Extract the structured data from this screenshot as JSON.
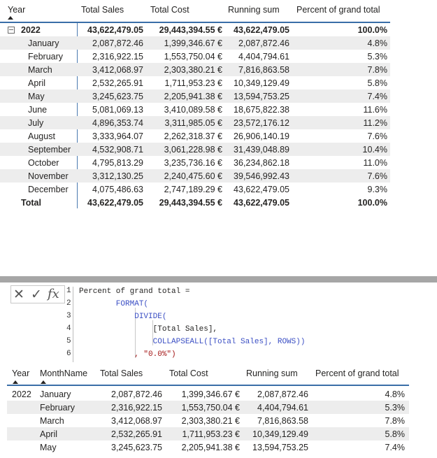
{
  "matrix": {
    "headers": {
      "year": "Year",
      "total_sales": "Total Sales",
      "total_cost": "Total Cost",
      "running_sum": "Running sum",
      "pct": "Percent of grand total"
    },
    "year_row": {
      "label": "2022",
      "total_sales": "43,622,479.05",
      "total_cost": "29,443,394.55 €",
      "running_sum": "43,622,479.05",
      "pct": "100.0%"
    },
    "rows": [
      {
        "month": "January",
        "total_sales": "2,087,872.46",
        "total_cost": "1,399,346.67 €",
        "running_sum": "2,087,872.46",
        "pct": "4.8%"
      },
      {
        "month": "February",
        "total_sales": "2,316,922.15",
        "total_cost": "1,553,750.04 €",
        "running_sum": "4,404,794.61",
        "pct": "5.3%"
      },
      {
        "month": "March",
        "total_sales": "3,412,068.97",
        "total_cost": "2,303,380.21 €",
        "running_sum": "7,816,863.58",
        "pct": "7.8%"
      },
      {
        "month": "April",
        "total_sales": "2,532,265.91",
        "total_cost": "1,711,953.23 €",
        "running_sum": "10,349,129.49",
        "pct": "5.8%"
      },
      {
        "month": "May",
        "total_sales": "3,245,623.75",
        "total_cost": "2,205,941.38 €",
        "running_sum": "13,594,753.25",
        "pct": "7.4%"
      },
      {
        "month": "June",
        "total_sales": "5,081,069.13",
        "total_cost": "3,410,089.58 €",
        "running_sum": "18,675,822.38",
        "pct": "11.6%"
      },
      {
        "month": "July",
        "total_sales": "4,896,353.74",
        "total_cost": "3,311,985.05 €",
        "running_sum": "23,572,176.12",
        "pct": "11.2%"
      },
      {
        "month": "August",
        "total_sales": "3,333,964.07",
        "total_cost": "2,262,318.37 €",
        "running_sum": "26,906,140.19",
        "pct": "7.6%"
      },
      {
        "month": "September",
        "total_sales": "4,532,908.71",
        "total_cost": "3,061,228.98 €",
        "running_sum": "31,439,048.89",
        "pct": "10.4%"
      },
      {
        "month": "October",
        "total_sales": "4,795,813.29",
        "total_cost": "3,235,736.16 €",
        "running_sum": "36,234,862.18",
        "pct": "11.0%"
      },
      {
        "month": "November",
        "total_sales": "3,312,130.25",
        "total_cost": "2,240,475.60 €",
        "running_sum": "39,546,992.43",
        "pct": "7.6%"
      },
      {
        "month": "December",
        "total_sales": "4,075,486.63",
        "total_cost": "2,747,189.29 €",
        "running_sum": "43,622,479.05",
        "pct": "9.3%"
      }
    ],
    "total_row": {
      "label": "Total",
      "total_sales": "43,622,479.05",
      "total_cost": "29,443,394.55 €",
      "running_sum": "43,622,479.05",
      "pct": "100.0%"
    }
  },
  "formula_bar": {
    "cancel_symbol": "✕",
    "commit_symbol": "✓",
    "fx_symbol": "fx",
    "line_numbers": [
      "1",
      "2",
      "3",
      "4",
      "5",
      "6"
    ],
    "lines": [
      "Percent of grand total =",
      "        FORMAT(",
      "            DIVIDE(",
      "                [Total Sales],",
      "                COLLAPSEALL([Total Sales], ROWS))",
      "            , \"0.0%\")"
    ]
  },
  "table": {
    "headers": {
      "year": "Year",
      "month": "MonthName",
      "total_sales": "Total Sales",
      "total_cost": "Total Cost",
      "running_sum": "Running sum",
      "pct": "Percent of grand total"
    },
    "rows": [
      {
        "year": "2022",
        "month": "January",
        "total_sales": "2,087,872.46",
        "total_cost": "1,399,346.67 €",
        "running_sum": "2,087,872.46",
        "pct": "4.8%"
      },
      {
        "year": "",
        "month": "February",
        "total_sales": "2,316,922.15",
        "total_cost": "1,553,750.04 €",
        "running_sum": "4,404,794.61",
        "pct": "5.3%"
      },
      {
        "year": "",
        "month": "March",
        "total_sales": "3,412,068.97",
        "total_cost": "2,303,380.21 €",
        "running_sum": "7,816,863.58",
        "pct": "7.8%"
      },
      {
        "year": "",
        "month": "April",
        "total_sales": "2,532,265.91",
        "total_cost": "1,711,953.23 €",
        "running_sum": "10,349,129.49",
        "pct": "5.8%"
      },
      {
        "year": "",
        "month": "May",
        "total_sales": "3,245,623.75",
        "total_cost": "2,205,941.38 €",
        "running_sum": "13,594,753.25",
        "pct": "7.4%"
      }
    ]
  }
}
